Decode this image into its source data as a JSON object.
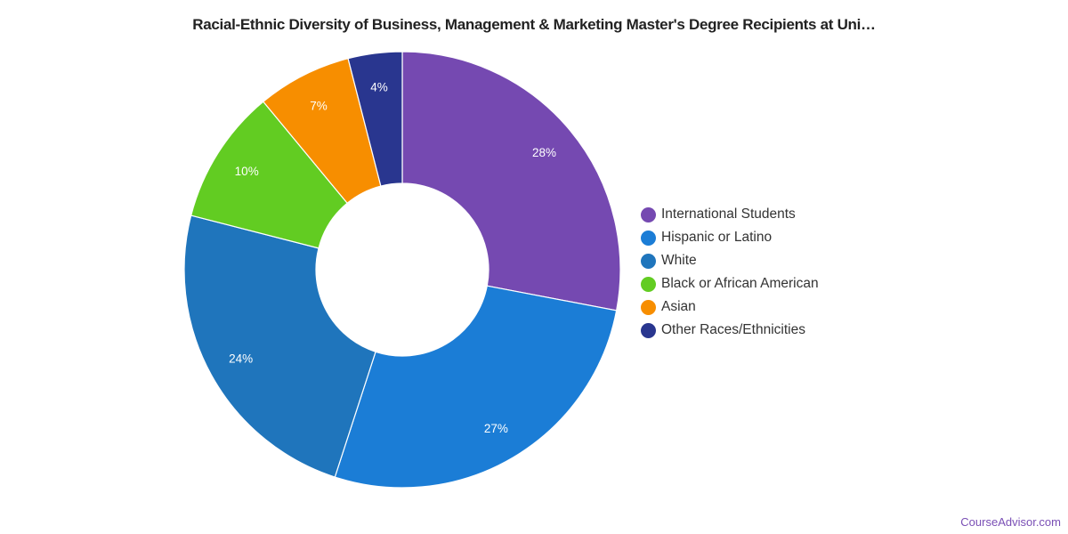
{
  "chart_data": {
    "type": "pie",
    "donut": true,
    "title": "Racial-Ethnic Diversity of Business, Management & Marketing Master's Degree Recipients at Uni…",
    "categories": [
      "International Students",
      "Hispanic or Latino",
      "White",
      "Black or African American",
      "Asian",
      "Other Races/Ethnicities"
    ],
    "values": [
      28,
      27,
      24,
      10,
      7,
      4
    ],
    "labels": [
      "28%",
      "27%",
      "24%",
      "10%",
      "7%",
      "4%"
    ],
    "colors": [
      "#7549B1",
      "#1B7DD6",
      "#1F75BC",
      "#62CC22",
      "#F78E00",
      "#29368F"
    ],
    "legend_position": "right"
  },
  "watermark": "CourseAdvisor.com"
}
